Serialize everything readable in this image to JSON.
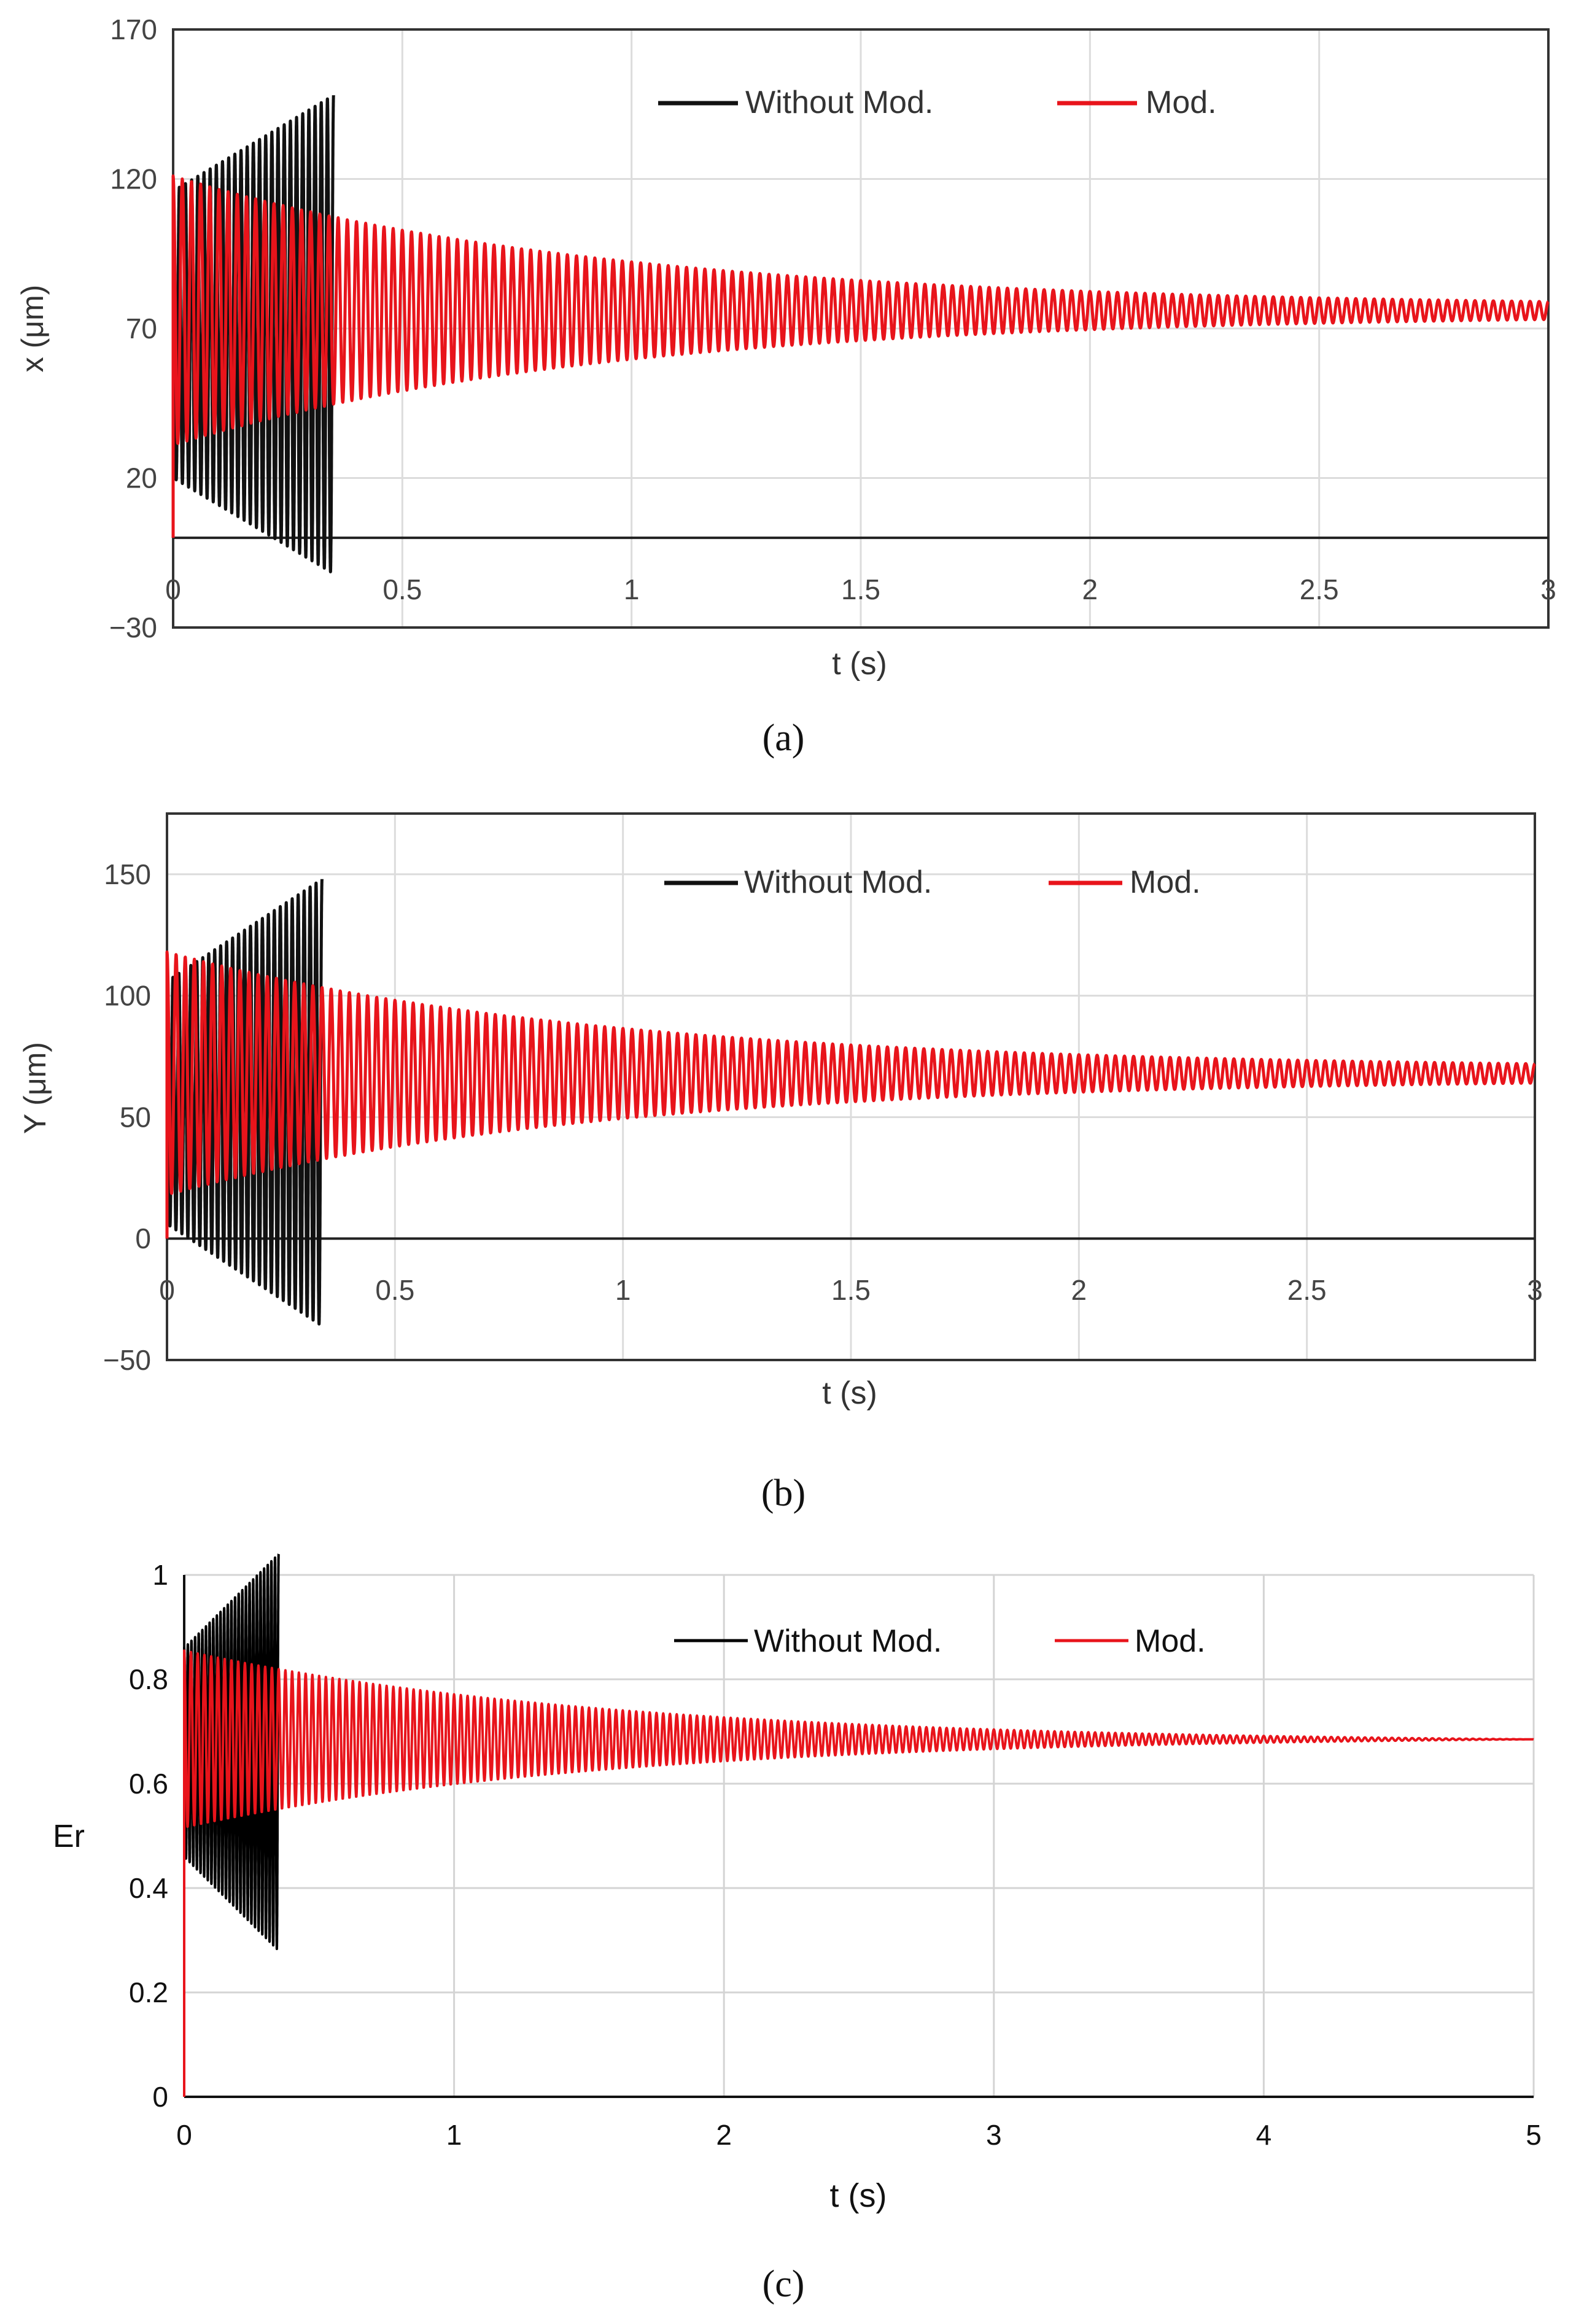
{
  "chart_data": [
    {
      "panel": "a",
      "type": "line",
      "caption": "(a)",
      "xlabel": "t (s)",
      "ylabel": "x (μm)",
      "xlim": [
        0,
        3
      ],
      "ylim": [
        -30,
        170
      ],
      "xticks": [
        0,
        0.5,
        1,
        1.5,
        2,
        2.5,
        3
      ],
      "xtick_labels": [
        "0",
        "0.5",
        "1",
        "1.5",
        "2",
        "2.5",
        "3"
      ],
      "yticks": [
        -30,
        20,
        70,
        120,
        170
      ],
      "ytick_labels": [
        "−30",
        "20",
        "70",
        "120",
        "170"
      ],
      "grid": true,
      "legend_position": "top-right",
      "series": [
        {
          "name": "Without Mod.",
          "color": "#111111",
          "t_end": 0.35,
          "center": 68,
          "amp_start": 48,
          "amp_end": 80,
          "cycles": 26
        },
        {
          "name": "Mod.",
          "color": "#e8141b",
          "t_end": 3,
          "center": 76,
          "amp_start": 45,
          "amp_end": 3,
          "cycles": 150
        }
      ]
    },
    {
      "panel": "b",
      "type": "line",
      "caption": "(b)",
      "xlabel": "t (s)",
      "ylabel": "Y (μm)",
      "xlim": [
        0,
        3
      ],
      "ylim": [
        -50,
        175
      ],
      "xticks": [
        0,
        0.5,
        1,
        1.5,
        2,
        2.5,
        3
      ],
      "xtick_labels": [
        "0",
        "0.5",
        "1",
        "1.5",
        "2",
        "2.5",
        "3"
      ],
      "yticks": [
        -50,
        0,
        50,
        100,
        150
      ],
      "ytick_labels": [
        "−50",
        "0",
        "50",
        "100",
        "150"
      ],
      "grid": true,
      "legend_position": "top-right",
      "series": [
        {
          "name": "Without Mod.",
          "color": "#111111",
          "t_end": 0.34,
          "center": 56,
          "amp_start": 50,
          "amp_end": 92,
          "cycles": 26
        },
        {
          "name": "Mod.",
          "color": "#e8141b",
          "t_end": 3,
          "center": 68,
          "amp_start": 50,
          "amp_end": 4,
          "cycles": 150
        }
      ]
    },
    {
      "panel": "c",
      "type": "line",
      "caption": "(c)",
      "xlabel": "t (s)",
      "ylabel": "Er",
      "xlim": [
        0,
        5
      ],
      "ylim": [
        0,
        1
      ],
      "xticks": [
        0,
        1,
        2,
        3,
        4,
        5
      ],
      "xtick_labels": [
        "0",
        "1",
        "2",
        "3",
        "4",
        "5"
      ],
      "yticks": [
        0,
        0.2,
        0.4,
        0.6,
        0.8,
        1
      ],
      "ytick_labels": [
        "0",
        "0.2",
        "0.4",
        "0.6",
        "0.8",
        "1"
      ],
      "grid": true,
      "legend_position": "top-right",
      "series": [
        {
          "name": "Without Mod.",
          "color": "#000000",
          "t_end": 0.35,
          "center": 0.66,
          "amp_start": 0.2,
          "amp_end": 0.38,
          "cycles": 26
        },
        {
          "name": "Mod.",
          "color": "#e8141b",
          "t_end": 5,
          "center": 0.685,
          "amp_start": 0.17,
          "amp_end": 0.0,
          "cycles": 200
        }
      ]
    }
  ]
}
